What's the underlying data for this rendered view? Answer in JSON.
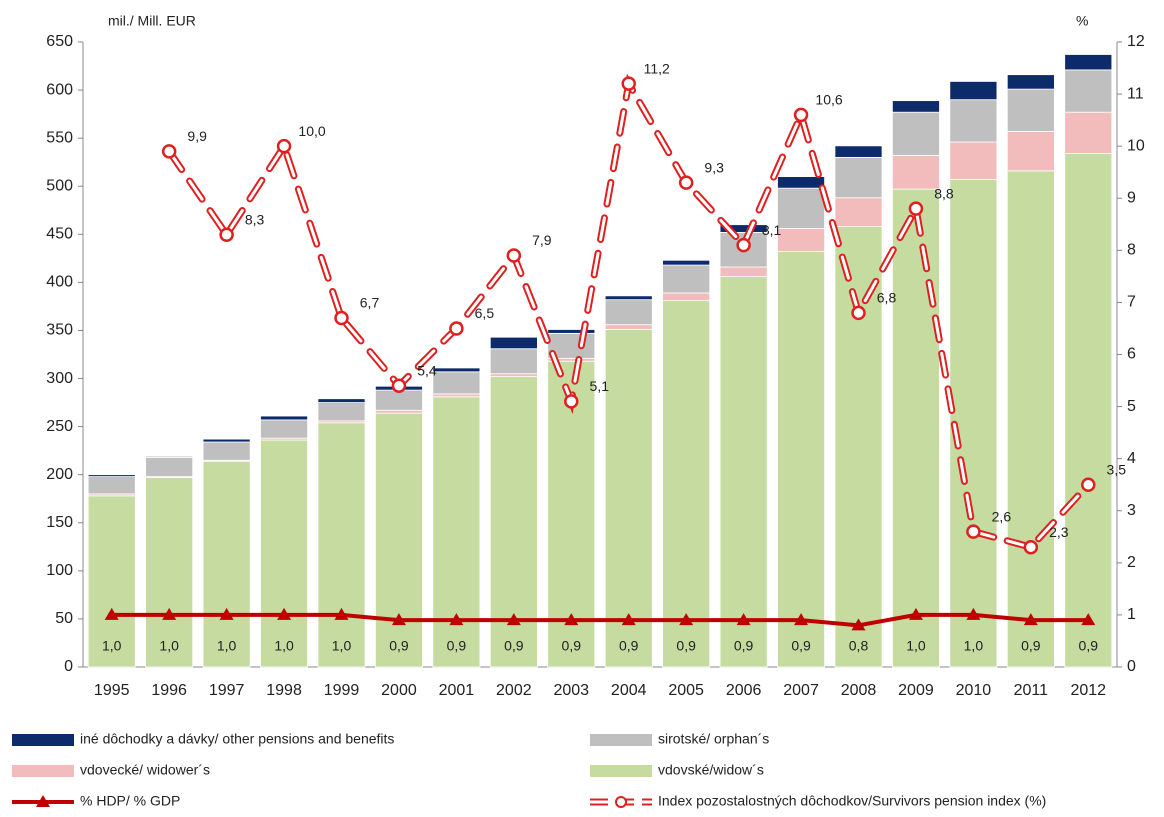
{
  "chart_data": {
    "type": "bar",
    "stacked": true,
    "ylabel": "mil./ Mill.  EUR",
    "y2label": "%",
    "categories": [
      "1995",
      "1996",
      "1997",
      "1998",
      "1999",
      "2000",
      "2001",
      "2002",
      "2003",
      "2004",
      "2005",
      "2006",
      "2007",
      "2008",
      "2009",
      "2010",
      "2011",
      "2012"
    ],
    "ylim": [
      0,
      650
    ],
    "yticks": [
      0,
      50,
      100,
      150,
      200,
      250,
      300,
      350,
      400,
      450,
      500,
      550,
      600,
      650
    ],
    "y2lim": [
      0,
      12
    ],
    "y2ticks": [
      0,
      1,
      2,
      3,
      4,
      5,
      6,
      7,
      8,
      9,
      10,
      11,
      12
    ],
    "series": [
      {
        "name": "iné dôchodky a dávky/ other pensions and benefits",
        "color": "#0d2a6b",
        "values": [
          2,
          1,
          3,
          4,
          4,
          4,
          4,
          12,
          4,
          4,
          5,
          8,
          12,
          12,
          12,
          19,
          15,
          16
        ]
      },
      {
        "name": "sirotské/ orphan´s",
        "color": "#bfbfbf",
        "values": [
          18,
          20,
          19,
          19,
          19,
          21,
          23,
          26,
          26,
          26,
          29,
          36,
          42,
          42,
          45,
          44,
          44,
          44
        ]
      },
      {
        "name": "vdovecké/ widower´s",
        "color": "#f2bcbc",
        "values": [
          2,
          1,
          1,
          2,
          2,
          3,
          3,
          3,
          3,
          5,
          8,
          10,
          24,
          30,
          35,
          39,
          41,
          43
        ]
      },
      {
        "name": "vdovské/widow´s",
        "color": "#c5dba0",
        "values": [
          178,
          197,
          214,
          236,
          254,
          264,
          281,
          302,
          318,
          351,
          381,
          406,
          432,
          458,
          497,
          507,
          516,
          534
        ]
      },
      {
        "name": "% HDP/ % GDP",
        "color": "#c00000",
        "type": "line",
        "axis": "y2",
        "marker": "triangle",
        "values": [
          1.0,
          1.0,
          1.0,
          1.0,
          1.0,
          0.9,
          0.9,
          0.9,
          0.9,
          0.9,
          0.9,
          0.9,
          0.9,
          0.8,
          1.0,
          1.0,
          0.9,
          0.9
        ],
        "value_labels": [
          "1,0",
          "1,0",
          "1,0",
          "1,0",
          "1,0",
          "0,9",
          "0,9",
          "0,9",
          "0,9",
          "0,9",
          "0,9",
          "0,9",
          "0,9",
          "0,8",
          "1,0",
          "1,0",
          "0,9",
          "0,9"
        ]
      },
      {
        "name": "Index pozostalostných dôchodkov/Survivors pension index (%)",
        "color": "#e02020",
        "type": "line",
        "axis": "y2",
        "marker": "circle",
        "line_style": "dashed",
        "values": [
          null,
          9.9,
          8.3,
          10.0,
          6.7,
          5.4,
          6.5,
          7.9,
          5.1,
          11.2,
          9.3,
          8.1,
          10.6,
          6.8,
          8.8,
          2.6,
          2.3,
          3.5
        ],
        "value_labels": [
          null,
          "9,9",
          "8,3",
          "10,0",
          "6,7",
          "5,4",
          "6,5",
          "7,9",
          "5,1",
          "11,2",
          "9,3",
          "8,1",
          "10,6",
          "6,8",
          "8,8",
          "2,6",
          "2,3",
          "3,5"
        ]
      }
    ]
  }
}
